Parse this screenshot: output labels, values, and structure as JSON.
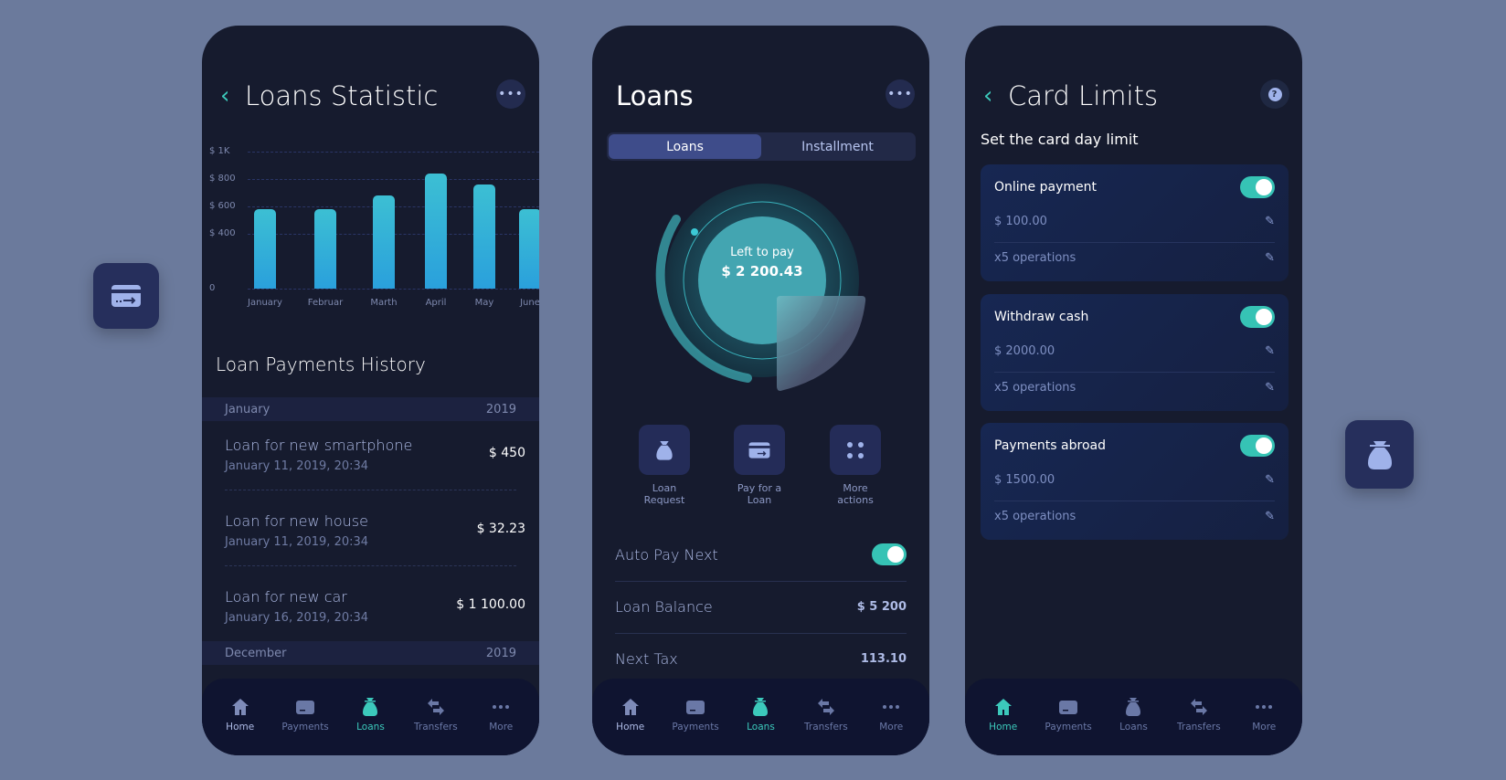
{
  "colors": {
    "background": "#6b7a9c",
    "phone": "#161b2e",
    "accent": "#3cc9bb",
    "bar": "#2fb0d8"
  },
  "statistic": {
    "title": "Loans Statistic",
    "more_icon": "more-horizontal-icon",
    "chart_data": {
      "type": "bar",
      "categories": [
        "January",
        "Februar",
        "Marth",
        "April",
        "May",
        "June"
      ],
      "values": [
        580,
        580,
        680,
        840,
        760,
        580
      ],
      "yticks": [
        "0",
        "$ 400",
        "$ 600",
        "$ 800",
        "$ 1K"
      ],
      "ytick_values": [
        0,
        400,
        600,
        800,
        1000
      ],
      "ylim": [
        0,
        1000
      ],
      "grid": true
    },
    "history_title": "Loan Payments History",
    "groups": [
      {
        "month": "January",
        "year": "2019",
        "items": [
          {
            "title": "Loan for new smartphone",
            "date": "January 11, 2019, 20:34",
            "amount": "$ 450"
          },
          {
            "title": "Loan for new house",
            "date": "January 11, 2019, 20:34",
            "amount": "$ 32.23"
          },
          {
            "title": "Loan for new car",
            "date": "January 16, 2019, 20:34",
            "amount": "$ 1 100.00"
          }
        ]
      },
      {
        "month": "December",
        "year": "2019",
        "items": []
      }
    ]
  },
  "loans": {
    "title": "Loans",
    "tabs": [
      {
        "label": "Loans",
        "active": true
      },
      {
        "label": "Installment",
        "active": false
      }
    ],
    "gauge": {
      "label": "Left to pay",
      "amount": "$ 2 200.43"
    },
    "actions": [
      {
        "label1": "Loan",
        "label2": "Request",
        "icon": "money-bag-icon"
      },
      {
        "label1": "Pay for a",
        "label2": "Loan",
        "icon": "card-transfer-icon"
      },
      {
        "label1": "More",
        "label2": "actions",
        "icon": "grid-dots-icon"
      }
    ],
    "auto_pay": {
      "label": "Auto Pay Next",
      "on": true
    },
    "balance": {
      "label": "Loan Balance",
      "value": "$ 5 200"
    },
    "tax": {
      "label": "Next Tax",
      "value": "113.10"
    }
  },
  "limits": {
    "title": "Card Limits",
    "help_icon": "help-icon",
    "subtitle": "Set the card day limit",
    "cards": [
      {
        "title": "Online payment",
        "on": true,
        "amount": "$ 100.00",
        "ops": "x5 operations"
      },
      {
        "title": "Withdraw cash",
        "on": true,
        "amount": "$ 2000.00",
        "ops": "x5 operations"
      },
      {
        "title": "Payments abroad",
        "on": true,
        "amount": "$ 1500.00",
        "ops": "x5 operations"
      }
    ]
  },
  "nav": [
    {
      "label": "Home",
      "icon": "home-icon"
    },
    {
      "label": "Payments",
      "icon": "card-icon"
    },
    {
      "label": "Loans",
      "icon": "money-bag-icon"
    },
    {
      "label": "Transfers",
      "icon": "transfer-arrows-icon"
    },
    {
      "label": "More",
      "icon": "more-horizontal-icon"
    }
  ]
}
